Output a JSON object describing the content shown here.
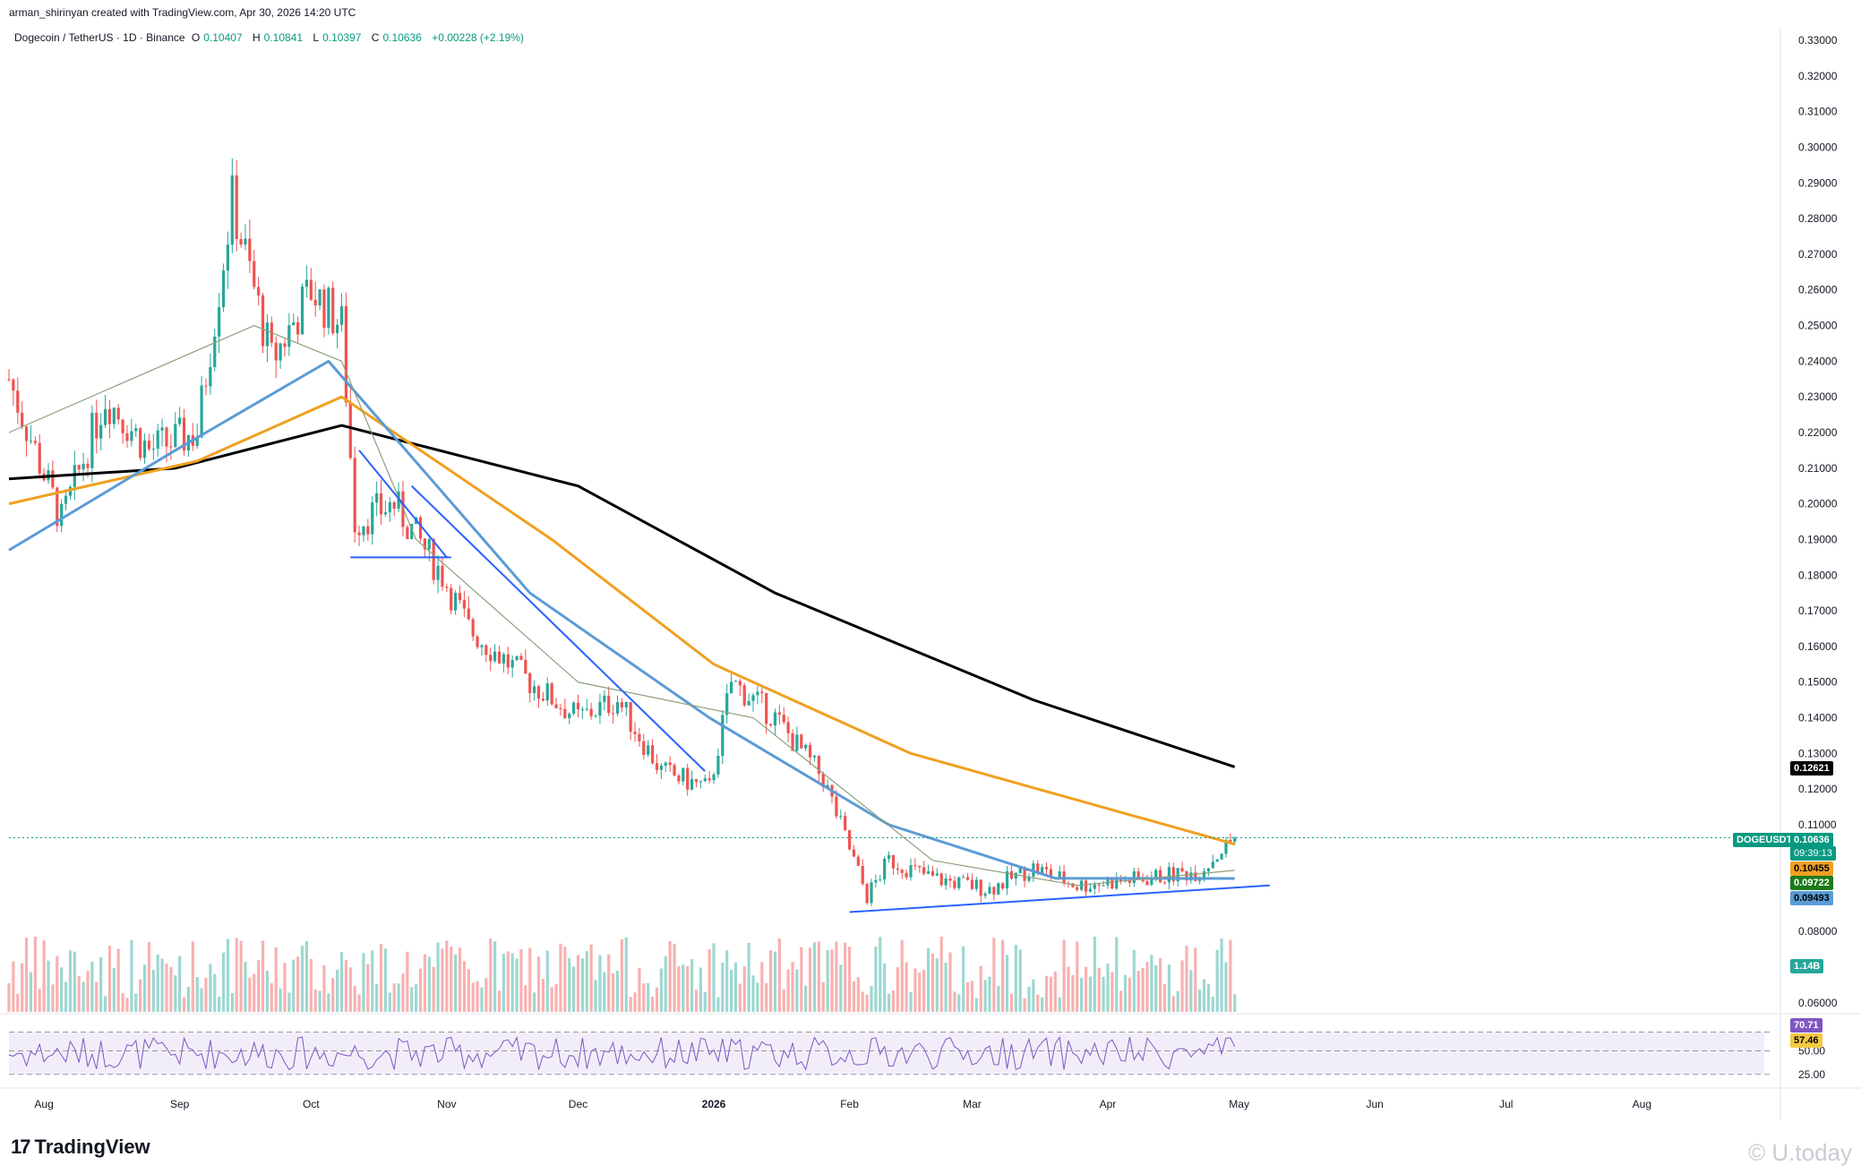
{
  "header": {
    "created_by": "arman_shirinyan created with TradingView.com, Apr 30, 2026 14:20 UTC"
  },
  "legend": {
    "symbol": "Dogecoin / TetherUS · 1D · Binance",
    "open_label": "O",
    "open": "0.10407",
    "high_label": "H",
    "high": "0.10841",
    "low_label": "L",
    "low": "0.10397",
    "close_label": "C",
    "close": "0.10636",
    "change": "+0.00228 (+2.19%)"
  },
  "badges": {
    "ma200": "0.12621",
    "ticker": "DOGEUSDT",
    "price": "0.10636",
    "countdown": "09:39:13",
    "ma100": "0.10455",
    "ma20": "0.09722",
    "ma50": "0.09493",
    "volume": "1.14B",
    "rsi": "70.71",
    "rsi_ma": "57.46"
  },
  "colors": {
    "up": "#26a69a",
    "down": "#ef5350",
    "ma50": "#5b9bd5",
    "ma100": "#f0a020",
    "ma200": "#000000",
    "ma20": "#8aa07a",
    "trendline": "#2962ff",
    "rsi": "#7e57c2",
    "rsi_ma": "#f5c842"
  },
  "footer": {
    "brand": "TradingView",
    "watermark": "© U.today"
  },
  "chart_data": {
    "type": "candlestick",
    "y_axis": {
      "ticks": [
        "0.33000",
        "0.32000",
        "0.31000",
        "0.30000",
        "0.29000",
        "0.28000",
        "0.27000",
        "0.26000",
        "0.25000",
        "0.24000",
        "0.23000",
        "0.22000",
        "0.21000",
        "0.20000",
        "0.19000",
        "0.18000",
        "0.17000",
        "0.16000",
        "0.15000",
        "0.14000",
        "0.13000",
        "0.12000",
        "0.11000",
        "0.08000",
        "0.06000"
      ],
      "range": [
        0.06,
        0.33
      ]
    },
    "x_axis": {
      "ticks": [
        "Aug",
        "Sep",
        "Oct",
        "Nov",
        "Dec",
        "2026",
        "Feb",
        "Mar",
        "Apr",
        "May",
        "Jun",
        "Jul",
        "Aug"
      ],
      "range_days": [
        "2025-07-24",
        "2026-08-31"
      ]
    },
    "price_anchors": [
      {
        "date": "2025-07-24",
        "price": 0.235
      },
      {
        "date": "2025-08-05",
        "price": 0.195
      },
      {
        "date": "2025-08-15",
        "price": 0.23
      },
      {
        "date": "2025-08-25",
        "price": 0.215
      },
      {
        "date": "2025-09-05",
        "price": 0.22
      },
      {
        "date": "2025-09-13",
        "price": 0.285
      },
      {
        "date": "2025-09-22",
        "price": 0.24
      },
      {
        "date": "2025-10-01",
        "price": 0.26
      },
      {
        "date": "2025-10-08",
        "price": 0.25
      },
      {
        "date": "2025-10-11",
        "price": 0.195
      },
      {
        "date": "2025-10-20",
        "price": 0.2
      },
      {
        "date": "2025-10-31",
        "price": 0.18
      },
      {
        "date": "2025-11-06",
        "price": 0.165
      },
      {
        "date": "2025-11-20",
        "price": 0.15
      },
      {
        "date": "2025-12-01",
        "price": 0.14
      },
      {
        "date": "2025-12-10",
        "price": 0.145
      },
      {
        "date": "2025-12-20",
        "price": 0.125
      },
      {
        "date": "2025-12-31",
        "price": 0.12
      },
      {
        "date": "2026-01-05",
        "price": 0.15
      },
      {
        "date": "2026-01-15",
        "price": 0.14
      },
      {
        "date": "2026-01-26",
        "price": 0.123
      },
      {
        "date": "2026-02-05",
        "price": 0.09
      },
      {
        "date": "2026-02-10",
        "price": 0.1
      },
      {
        "date": "2026-02-20",
        "price": 0.095
      },
      {
        "date": "2026-03-05",
        "price": 0.092
      },
      {
        "date": "2026-03-15",
        "price": 0.098
      },
      {
        "date": "2026-03-25",
        "price": 0.093
      },
      {
        "date": "2026-04-10",
        "price": 0.095
      },
      {
        "date": "2026-04-22",
        "price": 0.097
      },
      {
        "date": "2026-04-30",
        "price": 0.10636
      }
    ],
    "moving_averages": [
      {
        "name": "MA200",
        "points": [
          [
            0.207,
            "2025-07-24"
          ],
          [
            0.21,
            "2025-08-31"
          ],
          [
            0.222,
            "2025-10-08"
          ],
          [
            0.205,
            "2025-12-01"
          ],
          [
            0.175,
            "2026-01-15"
          ],
          [
            0.145,
            "2026-03-15"
          ],
          [
            0.12621,
            "2026-04-30"
          ]
        ]
      },
      {
        "name": "MA100",
        "points": [
          [
            0.2,
            "2025-07-24"
          ],
          [
            0.212,
            "2025-09-05"
          ],
          [
            0.23,
            "2025-10-08"
          ],
          [
            0.19,
            "2025-11-25"
          ],
          [
            0.155,
            "2026-01-01"
          ],
          [
            0.13,
            "2026-02-15"
          ],
          [
            0.10455,
            "2026-04-30"
          ]
        ]
      },
      {
        "name": "MA50",
        "points": [
          [
            0.187,
            "2025-07-24"
          ],
          [
            0.215,
            "2025-08-31"
          ],
          [
            0.24,
            "2025-10-05"
          ],
          [
            0.175,
            "2025-11-20"
          ],
          [
            0.14,
            "2025-12-31"
          ],
          [
            0.11,
            "2026-02-10"
          ],
          [
            0.095,
            "2026-03-20"
          ],
          [
            0.09493,
            "2026-04-30"
          ]
        ]
      },
      {
        "name": "MA20",
        "points": [
          [
            0.22,
            "2025-07-24"
          ],
          [
            0.25,
            "2025-09-18"
          ],
          [
            0.24,
            "2025-10-08"
          ],
          [
            0.19,
            "2025-10-25"
          ],
          [
            0.15,
            "2025-12-01"
          ],
          [
            0.14,
            "2026-01-10"
          ],
          [
            0.1,
            "2026-02-20"
          ],
          [
            0.093,
            "2026-03-25"
          ],
          [
            0.09722,
            "2026-04-30"
          ]
        ]
      }
    ],
    "trendlines": [
      {
        "name": "descending",
        "from": [
          "2025-10-12",
          0.215
        ],
        "to": [
          "2025-11-01",
          0.185
        ]
      },
      {
        "name": "channel-descending",
        "from": [
          "2025-10-24",
          0.205
        ],
        "to": [
          "2025-12-30",
          0.125
        ]
      },
      {
        "name": "flag-base",
        "from": [
          "2025-10-10",
          0.185
        ],
        "to": [
          "2025-11-02",
          0.185
        ]
      },
      {
        "name": "ascending-support",
        "from": [
          "2026-02-01",
          0.0855
        ],
        "to": [
          "2026-05-08",
          0.093
        ]
      }
    ],
    "rsi": {
      "levels": [
        "70",
        "50.00",
        "25.00"
      ],
      "value": 70.71,
      "ma": 57.46
    }
  }
}
